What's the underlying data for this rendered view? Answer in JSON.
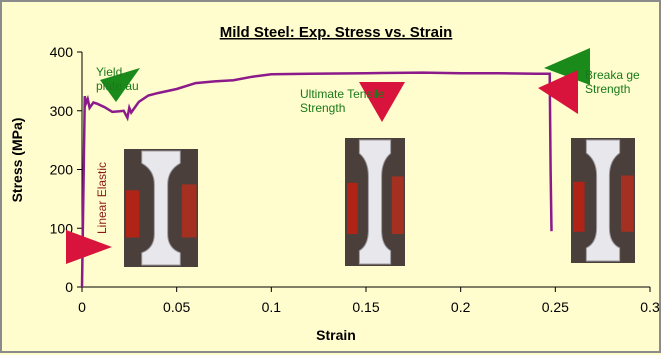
{
  "chart_data": {
    "type": "line",
    "title": "Mild Steel: Exp. Stress vs. Strain",
    "xlabel": "Strain",
    "ylabel": "Stress (MPa)",
    "xlim": [
      0,
      0.3
    ],
    "ylim": [
      0,
      400
    ],
    "x_ticks": [
      "0",
      "0.05",
      "0.1",
      "0.15",
      "0.2",
      "0.25",
      "0.3"
    ],
    "y_ticks": [
      "0",
      "100",
      "200",
      "300",
      "400"
    ],
    "grid": false,
    "series": [
      {
        "color": "#8b1a8b",
        "x": [
          0,
          0.0015,
          0.002,
          0.003,
          0.004,
          0.006,
          0.008,
          0.012,
          0.016,
          0.02,
          0.022,
          0.024,
          0.025,
          0.026,
          0.03,
          0.035,
          0.04,
          0.05,
          0.06,
          0.07,
          0.08,
          0.09,
          0.1,
          0.12,
          0.15,
          0.18,
          0.2,
          0.22,
          0.24,
          0.247,
          0.2475,
          0.248
        ],
        "y": [
          0,
          325,
          312,
          320,
          305,
          314,
          312,
          306,
          298,
          299,
          300,
          288,
          305,
          297,
          315,
          326,
          330,
          337,
          347,
          350,
          352,
          358,
          362,
          363,
          364,
          365,
          364,
          364,
          363,
          363,
          200,
          95
        ]
      }
    ],
    "annotations": [
      {
        "text": "Linear Elastic",
        "color": "#8b1a1a"
      },
      {
        "text": "Yield plateau",
        "lines": [
          "Yield",
          "plate au"
        ]
      },
      {
        "text": "Ultimate Tensile Strength",
        "lines": [
          "Ultimate Tensile",
          "Strength"
        ]
      },
      {
        "text": "Breakage Strength",
        "lines": [
          "Breaka ge",
          "Strength"
        ]
      }
    ]
  },
  "colors": {
    "background": "#fffccd",
    "series": "#8b1a8b",
    "red_marker": "#d8143c",
    "green_marker": "#1a8a1a"
  },
  "specimen_images": [
    {
      "label": "specimen-linear-elastic"
    },
    {
      "label": "specimen-ultimate"
    },
    {
      "label": "specimen-breakage"
    }
  ]
}
